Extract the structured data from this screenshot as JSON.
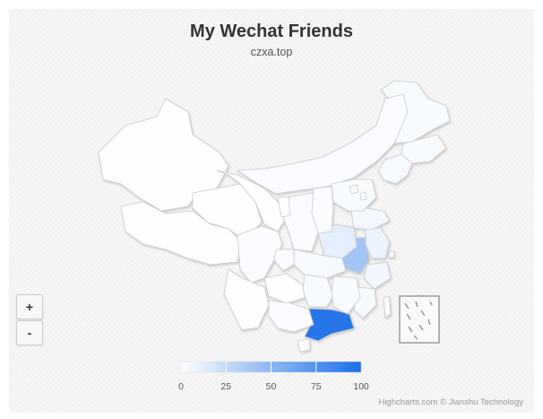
{
  "title": "My Wechat Friends",
  "subtitle": "czxa.top",
  "zoom": {
    "in_label": "+",
    "out_label": "-"
  },
  "credits": "Highcharts.com © Jianshu Technology",
  "colors": {
    "min_color": "#ffffff",
    "max_color": "#1a6fe8",
    "border": "#c9c9c9",
    "inset_border": "#999999"
  },
  "chart_data": {
    "type": "heatmap",
    "subtype": "choropleth-map",
    "region": "China provinces",
    "color_axis": {
      "min": 0,
      "max": 100,
      "ticks": [
        0,
        25,
        50,
        75,
        100
      ],
      "ticks_labels": [
        "0",
        "25",
        "50",
        "75",
        "100"
      ]
    },
    "values": [
      {
        "name": "Guangdong",
        "value": 95
      },
      {
        "name": "Anhui",
        "value": 40
      },
      {
        "name": "Henan",
        "value": 12
      },
      {
        "name": "Jiangsu",
        "value": 8
      },
      {
        "name": "Heilongjiang",
        "value": 3
      },
      {
        "name": "Jilin",
        "value": 3
      },
      {
        "name": "Liaoning",
        "value": 4
      },
      {
        "name": "Inner Mongolia",
        "value": 2
      },
      {
        "name": "Shandong",
        "value": 5
      },
      {
        "name": "Zhejiang",
        "value": 5
      },
      {
        "name": "Fujian",
        "value": 4
      },
      {
        "name": "Hubei",
        "value": 4
      },
      {
        "name": "Hunan",
        "value": 3
      },
      {
        "name": "Jiangxi",
        "value": 3
      },
      {
        "name": "Hainan",
        "value": 2
      },
      {
        "name": "Xinjiang",
        "value": 1
      },
      {
        "name": "Tibet",
        "value": 1
      },
      {
        "name": "Qinghai",
        "value": 1
      },
      {
        "name": "Gansu",
        "value": 1
      },
      {
        "name": "Sichuan",
        "value": 2
      },
      {
        "name": "Yunnan",
        "value": 1
      },
      {
        "name": "Guangxi",
        "value": 2
      },
      {
        "name": "Guizhou",
        "value": 1
      },
      {
        "name": "Chongqing",
        "value": 2
      },
      {
        "name": "Shaanxi",
        "value": 2
      },
      {
        "name": "Shanxi",
        "value": 2
      },
      {
        "name": "Hebei",
        "value": 3
      },
      {
        "name": "Beijing",
        "value": 3
      },
      {
        "name": "Tianjin",
        "value": 2
      },
      {
        "name": "Ningxia",
        "value": 1
      },
      {
        "name": "Shanghai",
        "value": 4
      },
      {
        "name": "Taiwan",
        "value": 1
      }
    ]
  }
}
